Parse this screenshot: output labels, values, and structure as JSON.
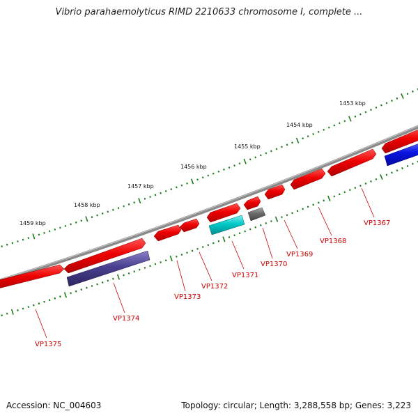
{
  "title": "Vibrio parahaemolyticus RIMD 2210633 chromosome I, complete ...",
  "footer": {
    "accession": "Accession: NC_004603",
    "summary": "Topology: circular; Length: 3,288,558 bp; Genes: 3,223"
  },
  "colors": {
    "backbone": "#8a8a8a",
    "tick": "#1a7a1a",
    "label": "#cc0000",
    "gene_red": "#ee0000",
    "gene_cyan": "#00c8c8",
    "gene_purple": "#4a3f8f",
    "gene_blue": "#0a14e0",
    "gene_grey": "#6a6a6a"
  },
  "scale_labels": [
    "1453 kbp",
    "1454 kbp",
    "1455 kbp",
    "1456 kbp",
    "1457 kbp",
    "1458 kbp",
    "1459 kbp"
  ],
  "gene_labels": [
    "VP1367",
    "VP1368",
    "VP1369",
    "VP1370",
    "VP1371",
    "VP1372",
    "VP1373",
    "VP1374",
    "VP1375"
  ]
}
